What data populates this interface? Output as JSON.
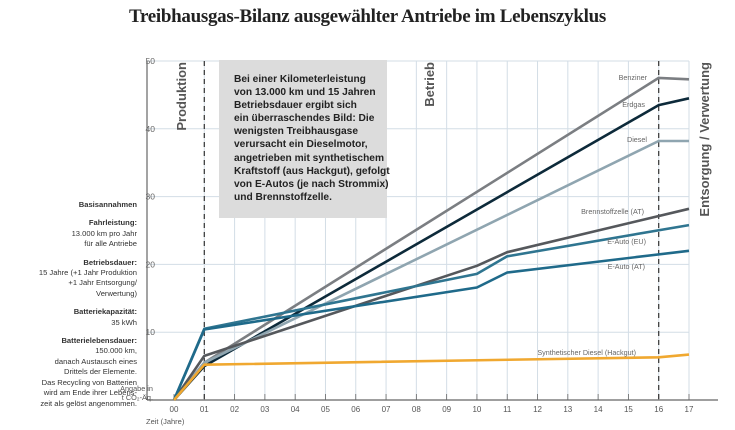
{
  "title": "Treibhausgas-Bilanz ausgewählter Antriebe im Lebenszyklus",
  "sidebar": {
    "heading": "Basisannahmen",
    "blocks": [
      {
        "label": "Fahrleistung:",
        "lines": [
          "13.000 km pro Jahr",
          "für alle Antriebe"
        ]
      },
      {
        "label": "Betriebsdauer:",
        "lines": [
          "15 Jahre (+1 Jahr Produktion",
          "+1 Jahr Entsorgung/",
          "Verwertung)"
        ]
      },
      {
        "label": "Batteriekapazität:",
        "lines": [
          "35 kWh"
        ]
      },
      {
        "label": "Batterielebensdauer:",
        "lines": [
          "150.000 km,",
          "danach Austausch eines",
          "Drittels der Elemente.",
          "Das Recycling von Batterien",
          "wird am Ende ihrer Lebens-",
          "zeit als gelöst angenommen."
        ]
      }
    ]
  },
  "note": {
    "lines": [
      "Bei einer Kilometerleistung",
      "von 13.000 km und 15 Jahren",
      "Betriebsdauer ergibt sich",
      "ein überraschendes Bild: Die",
      "wenigsten Treibhausgase",
      "verursacht ein Dieselmotor,",
      "angetrieben mit synthetischem",
      "Kraftstoff (aus Hackgut), gefolgt",
      "von E-Autos (je nach Strommix)",
      "und Brennstoffzelle."
    ]
  },
  "phases": {
    "production": "Produktion",
    "operation": "Betrieb",
    "disposal": "Entsorgung / Verwertung"
  },
  "colors": {
    "grid": "#d3dde6",
    "axis": "#666666",
    "dashed": "#333333",
    "note_bg": "#dcdcdc"
  },
  "chart_data": {
    "type": "line",
    "title": "Treibhausgas-Bilanz ausgewählter Antriebe im Lebenszyklus",
    "xlabel": "Zeit (Jahre)",
    "ylabel": "Angabe in t CO₂-Äq.",
    "ylabel_lines": [
      "Angabe in",
      "t CO₂-Äq."
    ],
    "xlim": [
      0,
      17
    ],
    "ylim": [
      0,
      50
    ],
    "x_ticks": [
      "00",
      "01",
      "02",
      "03",
      "04",
      "05",
      "06",
      "07",
      "08",
      "09",
      "10",
      "11",
      "12",
      "13",
      "14",
      "15",
      "16",
      "17"
    ],
    "y_ticks": [
      "10",
      "20",
      "30",
      "40",
      "50"
    ],
    "y_tick_values": [
      10,
      20,
      30,
      40,
      50
    ],
    "phase_boundaries": [
      1,
      16
    ],
    "grid": true,
    "series": [
      {
        "name": "Benziner",
        "color": "#7b7e82",
        "points": [
          [
            0,
            0
          ],
          [
            1,
            5.5
          ],
          [
            16,
            47.5
          ],
          [
            17,
            47.3
          ]
        ]
      },
      {
        "name": "Erdgas",
        "color": "#0d2a3a",
        "points": [
          [
            0,
            0
          ],
          [
            1,
            5.0
          ],
          [
            16,
            43.5
          ],
          [
            17,
            44.5
          ]
        ]
      },
      {
        "name": "Diesel",
        "color": "#8fa5b0",
        "points": [
          [
            0,
            0
          ],
          [
            1,
            5.5
          ],
          [
            16,
            38.2
          ],
          [
            17,
            38.2
          ]
        ]
      },
      {
        "name": "Brennstoffzelle (AT)",
        "color": "#55585c",
        "points": [
          [
            0,
            0
          ],
          [
            1,
            6.5
          ],
          [
            10,
            19.8
          ],
          [
            11,
            21.8
          ],
          [
            17,
            28.2
          ]
        ]
      },
      {
        "name": "E-Auto (EU)",
        "color": "#2f7590",
        "points": [
          [
            0,
            0
          ],
          [
            1,
            10.5
          ],
          [
            10,
            18.6
          ],
          [
            11,
            21.2
          ],
          [
            17,
            25.8
          ]
        ]
      },
      {
        "name": "E-Auto (AT)",
        "color": "#1f6a8a",
        "points": [
          [
            0,
            0
          ],
          [
            1,
            10.4
          ],
          [
            10,
            16.6
          ],
          [
            11,
            18.8
          ],
          [
            17,
            22.0
          ]
        ]
      },
      {
        "name": "Synthetischer Diesel (Hackgut)",
        "color": "#f0a830",
        "points": [
          [
            0,
            0
          ],
          [
            1,
            5.2
          ],
          [
            16,
            6.3
          ],
          [
            17,
            6.7
          ]
        ]
      }
    ]
  }
}
